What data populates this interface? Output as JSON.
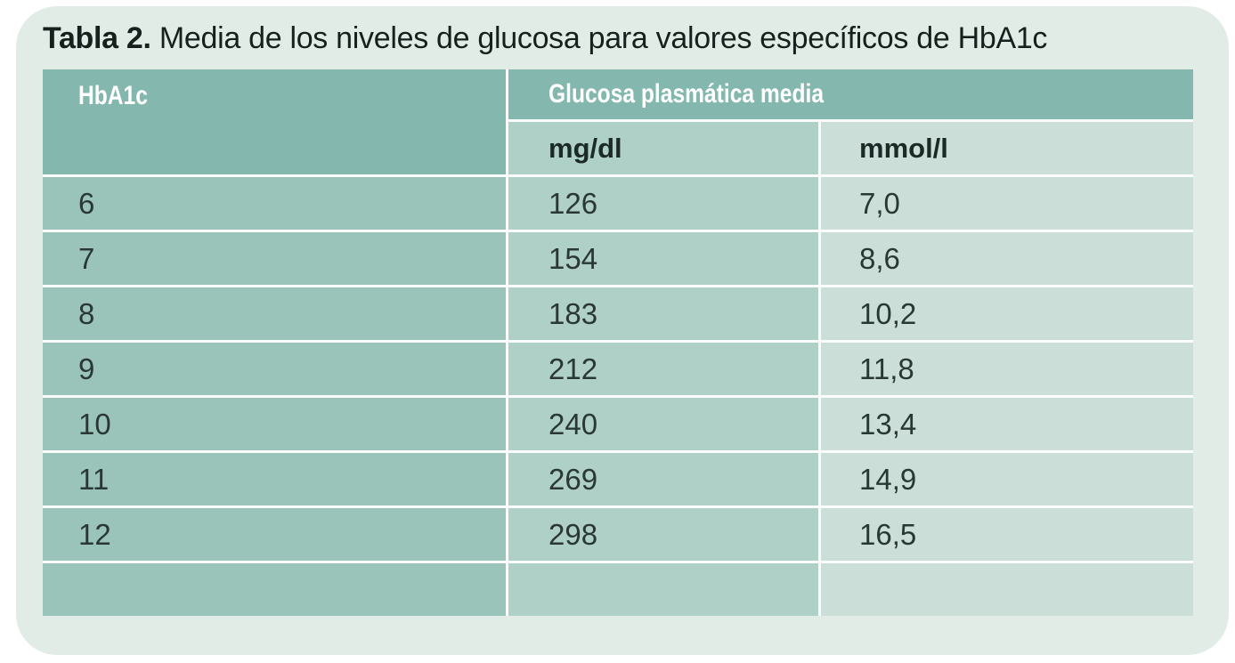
{
  "title": {
    "prefix": "Tabla 2.",
    "text": " Media de los niveles de glucosa para valores específicos de HbA1c"
  },
  "table": {
    "row_header": "HbA1c",
    "group_header": "Glucosa plasmática media",
    "sub_headers": {
      "mg_dl": "mg/dl",
      "mmol_l": "mmol/l"
    },
    "rows": [
      {
        "hba1c": "6",
        "mg_dl": "126",
        "mmol_l": "7,0"
      },
      {
        "hba1c": "7",
        "mg_dl": "154",
        "mmol_l": "8,6"
      },
      {
        "hba1c": "8",
        "mg_dl": "183",
        "mmol_l": "10,2"
      },
      {
        "hba1c": "9",
        "mg_dl": "212",
        "mmol_l": "11,8"
      },
      {
        "hba1c": "10",
        "mg_dl": "240",
        "mmol_l": "13,4"
      },
      {
        "hba1c": "11",
        "mg_dl": "269",
        "mmol_l": "14,9"
      },
      {
        "hba1c": "12",
        "mg_dl": "298",
        "mmol_l": "16,5"
      }
    ]
  },
  "colors": {
    "page_background": "#e1ece7",
    "header_teal": "#84b8ae",
    "column_hba1c": "#9ac4b9",
    "column_mg_dl": "#afd0c6",
    "column_mmol_l": "#cbdfd8",
    "divider": "#fbfdfc",
    "header_text": "#ffffff",
    "body_text": "#2a3835",
    "title_text": "#17201d"
  },
  "chart_data": {
    "type": "table",
    "title": "Tabla 2. Media de los niveles de glucosa para valores específicos de HbA1c",
    "columns": [
      "HbA1c",
      "Glucosa plasmática media mg/dl",
      "Glucosa plasmática media mmol/l"
    ],
    "rows": [
      [
        6,
        126,
        7.0
      ],
      [
        7,
        154,
        8.6
      ],
      [
        8,
        183,
        10.2
      ],
      [
        9,
        212,
        11.8
      ],
      [
        10,
        240,
        13.4
      ],
      [
        11,
        269,
        14.9
      ],
      [
        12,
        298,
        16.5
      ]
    ]
  }
}
